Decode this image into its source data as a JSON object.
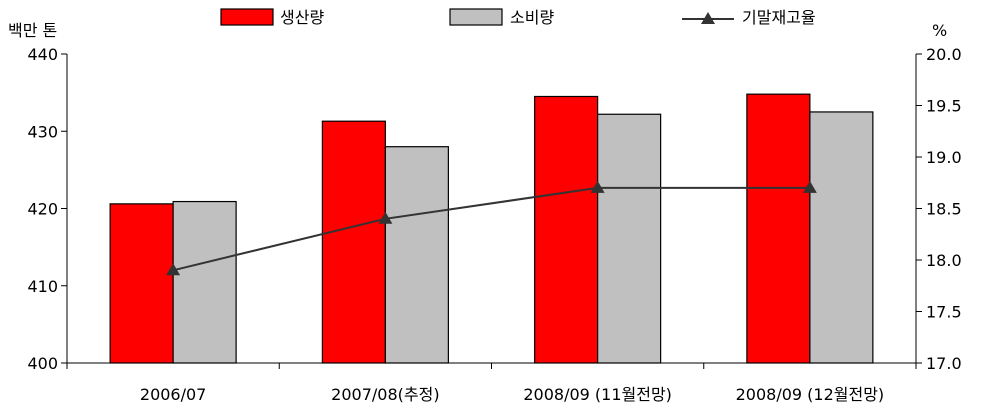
{
  "chart_data": {
    "type": "bar",
    "categories": [
      "2006/07",
      "2007/08(추정)",
      "2008/09 (11월전망)",
      "2008/09 (12월전망)"
    ],
    "series": [
      {
        "name": "생산량",
        "axis": "left",
        "color": "#ff0000",
        "values": [
          420.6,
          431.3,
          434.5,
          434.8
        ]
      },
      {
        "name": "소비량",
        "axis": "left",
        "color": "#c0c0c0",
        "values": [
          420.9,
          428.0,
          432.2,
          432.5
        ]
      },
      {
        "name": "기말재고율",
        "axis": "right",
        "type": "line",
        "marker": "triangle",
        "color": "#333333",
        "values": [
          17.9,
          18.4,
          18.7,
          18.7
        ]
      }
    ],
    "y_left": {
      "label": "백만 톤",
      "min": 400,
      "max": 440,
      "ticks": [
        400,
        410,
        420,
        430,
        440
      ]
    },
    "y_right": {
      "label": "%",
      "min": 17.0,
      "max": 20.0,
      "ticks": [
        17.0,
        17.5,
        18.0,
        18.5,
        19.0,
        19.5,
        20.0
      ],
      "tick_labels": [
        "17.0",
        "17.5",
        "18.0",
        "18.5",
        "19.0",
        "19.5",
        "20.0"
      ]
    },
    "legend_position": "top",
    "grid": false
  }
}
